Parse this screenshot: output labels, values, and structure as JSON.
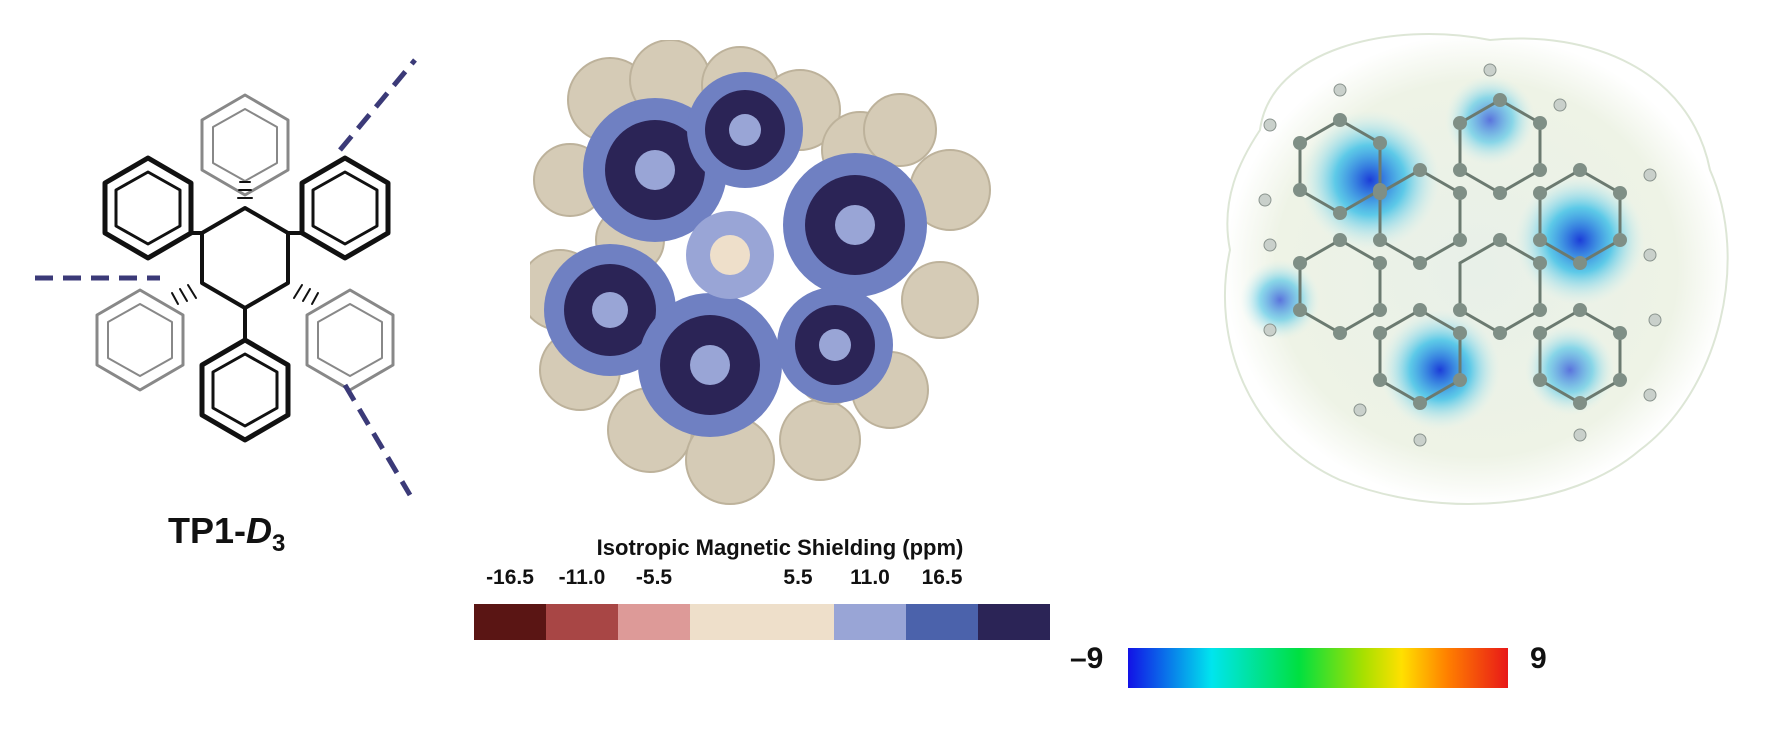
{
  "structure_panel": {
    "compound_prefix": "TP1-",
    "compound_symbol": "D",
    "compound_subscript": "3"
  },
  "shielding_panel": {
    "legend_title": "Isotropic Magnetic Shielding (ppm)",
    "ticks": [
      "-16.5",
      "-11.0",
      "-5.5",
      "5.5",
      "11.0",
      "16.5"
    ],
    "colors": [
      "#5a1514",
      "#a84645",
      "#dd9a98",
      "#eedfca",
      "#eedfca",
      "#99a5d6",
      "#4b62ab",
      "#2b2456"
    ]
  },
  "esp_panel": {
    "min_label": "–9",
    "max_label": "9"
  }
}
